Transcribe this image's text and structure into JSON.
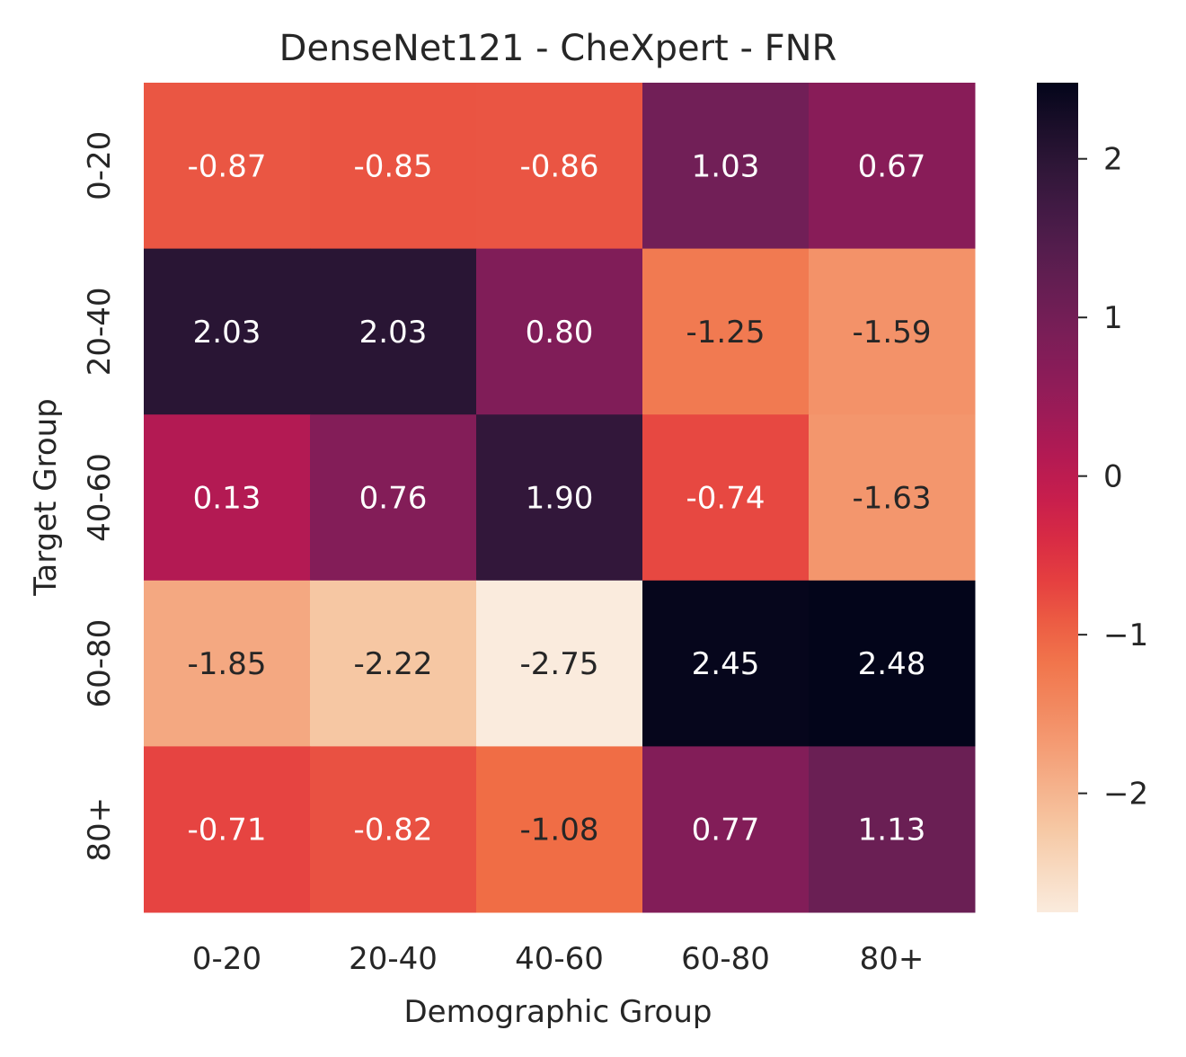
{
  "chart_data": {
    "type": "heatmap",
    "title": "DenseNet121 - CheXpert - FNR",
    "xlabel": "Demographic Group",
    "ylabel": "Target Group",
    "x_categories": [
      "0-20",
      "20-40",
      "40-60",
      "60-80",
      "80+"
    ],
    "y_categories": [
      "0-20",
      "20-40",
      "40-60",
      "60-80",
      "80+"
    ],
    "values": [
      [
        -0.87,
        -0.85,
        -0.86,
        1.03,
        0.67
      ],
      [
        2.03,
        2.03,
        0.8,
        -1.25,
        -1.59
      ],
      [
        0.13,
        0.76,
        1.9,
        -0.74,
        -1.63
      ],
      [
        -1.85,
        -2.22,
        -2.75,
        2.45,
        2.48
      ],
      [
        -0.71,
        -0.82,
        -1.08,
        0.77,
        1.13
      ]
    ],
    "value_labels": [
      [
        "-0.87",
        "-0.85",
        "-0.86",
        "1.03",
        "0.67"
      ],
      [
        "2.03",
        "2.03",
        "0.80",
        "-1.25",
        "-1.59"
      ],
      [
        "0.13",
        "0.76",
        "1.90",
        "-0.74",
        "-1.63"
      ],
      [
        "-1.85",
        "-2.22",
        "-2.75",
        "2.45",
        "2.48"
      ],
      [
        "-0.71",
        "-0.82",
        "-1.08",
        "0.77",
        "1.13"
      ]
    ],
    "colorbar": {
      "vmin": -2.75,
      "vmax": 2.48,
      "ticks": [
        2,
        1,
        0,
        -1,
        -2
      ],
      "tick_labels": [
        "2",
        "1",
        "0",
        "−1",
        "−2"
      ]
    },
    "colormap": "rocket_r",
    "grid": false
  }
}
